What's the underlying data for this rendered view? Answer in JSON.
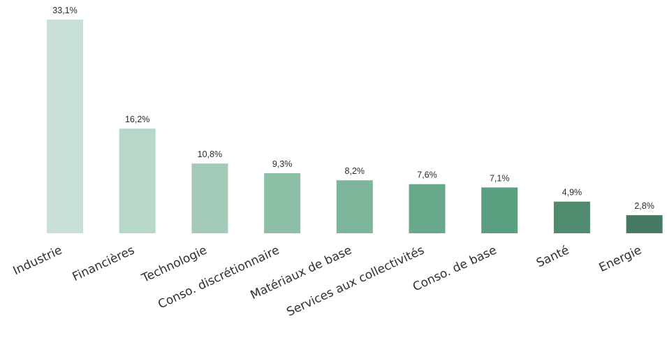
{
  "chart_data": {
    "type": "bar",
    "title": "",
    "xlabel": "",
    "ylabel": "",
    "categories": [
      "Industrie",
      "Financières",
      "Technologie",
      "Conso. discrétionnaire",
      "Matériaux de base",
      "Services aux collectivités",
      "Conso. de base",
      "Santé",
      "Energie"
    ],
    "values": [
      33.1,
      16.2,
      10.8,
      9.3,
      8.2,
      7.6,
      7.1,
      4.9,
      2.8
    ],
    "value_labels": [
      "33,1%",
      "16,2%",
      "10,8%",
      "9,3%",
      "8,2%",
      "7,6%",
      "7,1%",
      "4,9%",
      "2,8%"
    ],
    "ylim": [
      0,
      33.1
    ],
    "grid": false,
    "legend": "none",
    "colors": [
      "#c8e0d8",
      "#b7d8c9",
      "#a2cab6",
      "#8dbfa7",
      "#7db59b",
      "#67a98a",
      "#5a9f80",
      "#4f8b6f",
      "#477a62"
    ]
  }
}
